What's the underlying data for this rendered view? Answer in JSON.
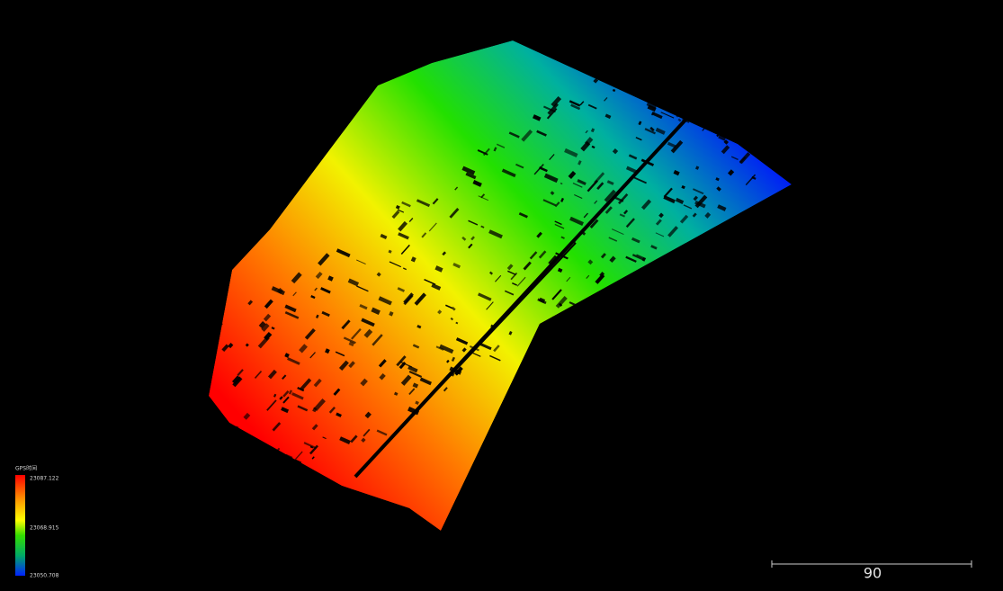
{
  "legend": {
    "title": "GPS时间",
    "labels": [
      23087.122,
      23068.915,
      23050.708
    ]
  },
  "scale_bar": {
    "label": "90"
  }
}
